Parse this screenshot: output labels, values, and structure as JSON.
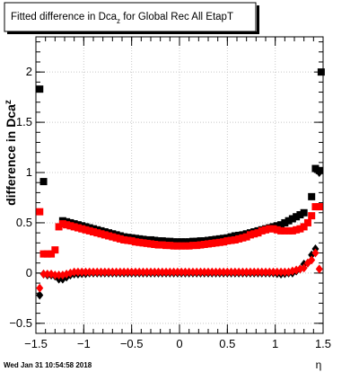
{
  "chart_data": {
    "type": "scatter",
    "title": "Fitted difference in Dca_z for Global Rec All EtapT",
    "title_main": "Fitted difference in Dca",
    "title_sub": "z",
    "title_tail": " for Global Rec All EtapT",
    "ylabel": "difference in Dca_z",
    "ylabel_main": "difference in Dca",
    "ylabel_sub": "z",
    "xlabel": "η",
    "timestamp": "Wed Jan 31 10:54:58 2018",
    "xlim": [
      -1.5,
      1.5
    ],
    "ylim": [
      -0.6,
      2.35
    ],
    "grid": true,
    "x_ticks": [
      -1.5,
      -1,
      -0.5,
      0,
      0.5,
      1,
      1.5
    ],
    "x_tick_labels": [
      "−1.5",
      "−1",
      "−0.5",
      "0",
      "0.5",
      "1",
      "1.5"
    ],
    "y_ticks": [
      -0.5,
      0,
      0.5,
      1,
      1.5,
      2
    ],
    "y_tick_labels": [
      "−0.5",
      "0",
      "0.5",
      "1",
      "1.5",
      "2"
    ],
    "colors": {
      "black": "#000000",
      "red": "#ff0000",
      "grid": "#c8c8c8"
    },
    "series": [
      {
        "color": "#000000",
        "marker": "square",
        "points": [
          [
            -1.46,
            1.83
          ],
          [
            -1.42,
            0.91
          ],
          [
            -1.22,
            0.52
          ],
          [
            -1.18,
            0.51
          ],
          [
            -1.14,
            0.5
          ],
          [
            -1.1,
            0.49
          ],
          [
            -1.06,
            0.48
          ],
          [
            -1.02,
            0.47
          ],
          [
            -0.98,
            0.46
          ],
          [
            -0.94,
            0.45
          ],
          [
            -0.9,
            0.44
          ],
          [
            -0.86,
            0.43
          ],
          [
            -0.82,
            0.42
          ],
          [
            -0.78,
            0.41
          ],
          [
            -0.74,
            0.4
          ],
          [
            -0.7,
            0.39
          ],
          [
            -0.66,
            0.38
          ],
          [
            -0.62,
            0.37
          ],
          [
            -0.58,
            0.36
          ],
          [
            -0.54,
            0.355
          ],
          [
            -0.5,
            0.35
          ],
          [
            -0.46,
            0.345
          ],
          [
            -0.42,
            0.34
          ],
          [
            -0.38,
            0.335
          ],
          [
            -0.34,
            0.33
          ],
          [
            -0.3,
            0.33
          ],
          [
            -0.26,
            0.325
          ],
          [
            -0.22,
            0.32
          ],
          [
            -0.18,
            0.32
          ],
          [
            -0.14,
            0.315
          ],
          [
            -0.1,
            0.315
          ],
          [
            -0.06,
            0.31
          ],
          [
            -0.02,
            0.31
          ],
          [
            0.02,
            0.31
          ],
          [
            0.06,
            0.31
          ],
          [
            0.1,
            0.31
          ],
          [
            0.14,
            0.315
          ],
          [
            0.18,
            0.315
          ],
          [
            0.22,
            0.32
          ],
          [
            0.26,
            0.32
          ],
          [
            0.3,
            0.325
          ],
          [
            0.34,
            0.33
          ],
          [
            0.38,
            0.335
          ],
          [
            0.42,
            0.34
          ],
          [
            0.46,
            0.345
          ],
          [
            0.5,
            0.35
          ],
          [
            0.54,
            0.36
          ],
          [
            0.58,
            0.37
          ],
          [
            0.62,
            0.375
          ],
          [
            0.66,
            0.38
          ],
          [
            0.7,
            0.39
          ],
          [
            0.74,
            0.4
          ],
          [
            0.78,
            0.41
          ],
          [
            0.82,
            0.42
          ],
          [
            0.86,
            0.43
          ],
          [
            0.9,
            0.44
          ],
          [
            0.94,
            0.45
          ],
          [
            0.98,
            0.46
          ],
          [
            1.02,
            0.47
          ],
          [
            1.06,
            0.48
          ],
          [
            1.1,
            0.5
          ],
          [
            1.14,
            0.52
          ],
          [
            1.18,
            0.54
          ],
          [
            1.22,
            0.56
          ],
          [
            1.26,
            0.58
          ],
          [
            1.3,
            0.6
          ],
          [
            1.38,
            0.76
          ],
          [
            1.42,
            1.04
          ],
          [
            1.46,
            1.02
          ],
          [
            1.48,
            2.0
          ]
        ]
      },
      {
        "color": "#ff0000",
        "marker": "square",
        "points": [
          [
            -1.46,
            0.61
          ],
          [
            -1.42,
            0.19
          ],
          [
            -1.38,
            0.19
          ],
          [
            -1.34,
            0.19
          ],
          [
            -1.3,
            0.23
          ],
          [
            -1.26,
            0.46
          ],
          [
            -1.22,
            0.49
          ],
          [
            -1.18,
            0.48
          ],
          [
            -1.14,
            0.47
          ],
          [
            -1.1,
            0.46
          ],
          [
            -1.06,
            0.45
          ],
          [
            -1.02,
            0.44
          ],
          [
            -0.98,
            0.43
          ],
          [
            -0.94,
            0.42
          ],
          [
            -0.9,
            0.41
          ],
          [
            -0.86,
            0.4
          ],
          [
            -0.82,
            0.39
          ],
          [
            -0.78,
            0.38
          ],
          [
            -0.74,
            0.37
          ],
          [
            -0.7,
            0.36
          ],
          [
            -0.66,
            0.35
          ],
          [
            -0.62,
            0.34
          ],
          [
            -0.58,
            0.33
          ],
          [
            -0.54,
            0.325
          ],
          [
            -0.5,
            0.32
          ],
          [
            -0.46,
            0.31
          ],
          [
            -0.42,
            0.305
          ],
          [
            -0.38,
            0.3
          ],
          [
            -0.34,
            0.295
          ],
          [
            -0.3,
            0.29
          ],
          [
            -0.26,
            0.285
          ],
          [
            -0.22,
            0.28
          ],
          [
            -0.18,
            0.28
          ],
          [
            -0.14,
            0.275
          ],
          [
            -0.1,
            0.275
          ],
          [
            -0.06,
            0.27
          ],
          [
            -0.02,
            0.27
          ],
          [
            0.02,
            0.27
          ],
          [
            0.06,
            0.27
          ],
          [
            0.1,
            0.27
          ],
          [
            0.14,
            0.275
          ],
          [
            0.18,
            0.275
          ],
          [
            0.22,
            0.28
          ],
          [
            0.26,
            0.285
          ],
          [
            0.3,
            0.29
          ],
          [
            0.34,
            0.295
          ],
          [
            0.38,
            0.3
          ],
          [
            0.42,
            0.305
          ],
          [
            0.46,
            0.31
          ],
          [
            0.5,
            0.32
          ],
          [
            0.54,
            0.325
          ],
          [
            0.58,
            0.33
          ],
          [
            0.62,
            0.34
          ],
          [
            0.66,
            0.35
          ],
          [
            0.7,
            0.36
          ],
          [
            0.74,
            0.38
          ],
          [
            0.78,
            0.39
          ],
          [
            0.82,
            0.4
          ],
          [
            0.86,
            0.42
          ],
          [
            0.9,
            0.43
          ],
          [
            0.94,
            0.44
          ],
          [
            0.98,
            0.44
          ],
          [
            1.02,
            0.43
          ],
          [
            1.06,
            0.42
          ],
          [
            1.1,
            0.42
          ],
          [
            1.14,
            0.42
          ],
          [
            1.18,
            0.42
          ],
          [
            1.22,
            0.43
          ],
          [
            1.26,
            0.44
          ],
          [
            1.3,
            0.46
          ],
          [
            1.34,
            0.5
          ],
          [
            1.38,
            0.57
          ],
          [
            1.42,
            0.66
          ],
          [
            1.46,
            0.66
          ]
        ]
      },
      {
        "color": "#000000",
        "marker": "diamond",
        "points": [
          [
            -1.46,
            -0.22
          ],
          [
            -1.42,
            -0.01
          ],
          [
            -1.38,
            -0.02
          ],
          [
            -1.34,
            -0.02
          ],
          [
            -1.3,
            -0.03
          ],
          [
            -1.26,
            -0.06
          ],
          [
            -1.22,
            -0.06
          ],
          [
            -1.18,
            -0.04
          ],
          [
            -1.14,
            -0.02
          ],
          [
            -1.1,
            -0.01
          ],
          [
            -1.06,
            -0.01
          ],
          [
            -1.02,
            -0.005
          ],
          [
            -0.98,
            -0.005
          ],
          [
            -0.94,
            0.0
          ],
          [
            -0.9,
            0.0
          ],
          [
            -0.86,
            0.0
          ],
          [
            -0.82,
            0.0
          ],
          [
            -0.78,
            0.0
          ],
          [
            -0.74,
            0.0
          ],
          [
            -0.7,
            0.0
          ],
          [
            -0.66,
            0.0
          ],
          [
            -0.62,
            0.0
          ],
          [
            -0.58,
            0.0
          ],
          [
            -0.54,
            0.0
          ],
          [
            -0.5,
            0.0
          ],
          [
            -0.46,
            0.0
          ],
          [
            -0.42,
            0.0
          ],
          [
            -0.38,
            0.0
          ],
          [
            -0.34,
            0.0
          ],
          [
            -0.3,
            0.0
          ],
          [
            -0.26,
            0.0
          ],
          [
            -0.22,
            0.0
          ],
          [
            -0.18,
            0.0
          ],
          [
            -0.14,
            0.0
          ],
          [
            -0.1,
            0.0
          ],
          [
            -0.06,
            0.0
          ],
          [
            -0.02,
            0.0
          ],
          [
            0.02,
            0.0
          ],
          [
            0.06,
            0.0
          ],
          [
            0.1,
            0.0
          ],
          [
            0.14,
            0.0
          ],
          [
            0.18,
            0.0
          ],
          [
            0.22,
            0.0
          ],
          [
            0.26,
            0.0
          ],
          [
            0.3,
            0.0
          ],
          [
            0.34,
            0.0
          ],
          [
            0.38,
            0.0
          ],
          [
            0.42,
            0.0
          ],
          [
            0.46,
            0.0
          ],
          [
            0.5,
            0.0
          ],
          [
            0.54,
            0.0
          ],
          [
            0.58,
            0.0
          ],
          [
            0.62,
            0.0
          ],
          [
            0.66,
            0.0
          ],
          [
            0.7,
            0.0
          ],
          [
            0.74,
            0.0
          ],
          [
            0.78,
            0.0
          ],
          [
            0.82,
            0.0
          ],
          [
            0.86,
            0.0
          ],
          [
            0.9,
            0.0
          ],
          [
            0.94,
            0.0
          ],
          [
            0.98,
            0.0
          ],
          [
            1.02,
            -0.005
          ],
          [
            1.06,
            -0.01
          ],
          [
            1.1,
            -0.005
          ],
          [
            1.14,
            0.0
          ],
          [
            1.18,
            0.0
          ],
          [
            1.22,
            0.02
          ],
          [
            1.26,
            0.04
          ],
          [
            1.3,
            0.09
          ],
          [
            1.34,
            0.1
          ],
          [
            1.38,
            0.18
          ],
          [
            1.42,
            0.24
          ],
          [
            1.46,
            1.0
          ]
        ]
      },
      {
        "color": "#ff0000",
        "marker": "diamond",
        "points": [
          [
            -1.46,
            -0.15
          ],
          [
            -1.42,
            -0.01
          ],
          [
            -1.38,
            -0.01
          ],
          [
            -1.34,
            -0.01
          ],
          [
            -1.3,
            -0.02
          ],
          [
            -1.26,
            -0.02
          ],
          [
            -1.22,
            -0.02
          ],
          [
            -1.18,
            -0.01
          ],
          [
            -1.14,
            0.0
          ],
          [
            -1.1,
            0.01
          ],
          [
            -1.06,
            0.01
          ],
          [
            -1.02,
            0.01
          ],
          [
            -0.98,
            0.01
          ],
          [
            -0.94,
            0.01
          ],
          [
            -0.9,
            0.01
          ],
          [
            -0.86,
            0.01
          ],
          [
            -0.82,
            0.01
          ],
          [
            -0.78,
            0.01
          ],
          [
            -0.74,
            0.01
          ],
          [
            -0.7,
            0.01
          ],
          [
            -0.66,
            0.01
          ],
          [
            -0.62,
            0.01
          ],
          [
            -0.58,
            0.01
          ],
          [
            -0.54,
            0.01
          ],
          [
            -0.5,
            0.01
          ],
          [
            -0.46,
            0.01
          ],
          [
            -0.42,
            0.01
          ],
          [
            -0.38,
            0.01
          ],
          [
            -0.34,
            0.01
          ],
          [
            -0.3,
            0.01
          ],
          [
            -0.26,
            0.01
          ],
          [
            -0.22,
            0.01
          ],
          [
            -0.18,
            0.01
          ],
          [
            -0.14,
            0.01
          ],
          [
            -0.1,
            0.01
          ],
          [
            -0.06,
            0.01
          ],
          [
            -0.02,
            0.01
          ],
          [
            0.02,
            0.01
          ],
          [
            0.06,
            0.01
          ],
          [
            0.1,
            0.01
          ],
          [
            0.14,
            0.01
          ],
          [
            0.18,
            0.01
          ],
          [
            0.22,
            0.01
          ],
          [
            0.26,
            0.01
          ],
          [
            0.3,
            0.01
          ],
          [
            0.34,
            0.01
          ],
          [
            0.38,
            0.01
          ],
          [
            0.42,
            0.01
          ],
          [
            0.46,
            0.01
          ],
          [
            0.5,
            0.01
          ],
          [
            0.54,
            0.01
          ],
          [
            0.58,
            0.01
          ],
          [
            0.62,
            0.01
          ],
          [
            0.66,
            0.01
          ],
          [
            0.7,
            0.01
          ],
          [
            0.74,
            0.01
          ],
          [
            0.78,
            0.01
          ],
          [
            0.82,
            0.01
          ],
          [
            0.86,
            0.01
          ],
          [
            0.9,
            0.01
          ],
          [
            0.94,
            0.01
          ],
          [
            0.98,
            0.01
          ],
          [
            1.02,
            0.01
          ],
          [
            1.06,
            0.01
          ],
          [
            1.1,
            0.01
          ],
          [
            1.14,
            0.01
          ],
          [
            1.18,
            0.02
          ],
          [
            1.22,
            0.03
          ],
          [
            1.26,
            0.04
          ],
          [
            1.3,
            0.05
          ],
          [
            1.34,
            0.1
          ],
          [
            1.38,
            0.13
          ],
          [
            1.42,
            0.2
          ],
          [
            1.46,
            0.04
          ]
        ]
      }
    ]
  }
}
